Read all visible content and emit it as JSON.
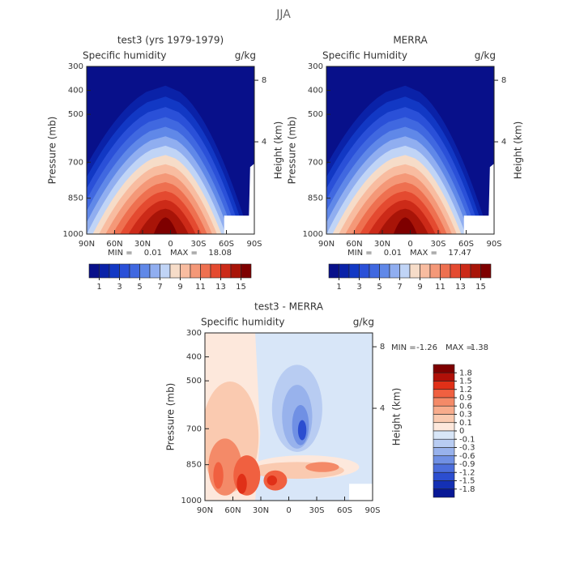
{
  "figure_title": "JJA",
  "chart_data": [
    {
      "type": "contour",
      "title": "test3 (yrs 1979-1979)",
      "subtitle": "Specific humidity",
      "units": "g/kg",
      "ylabel": "Pressure (mb)",
      "y2label": "Height (km)",
      "xlim": [
        90,
        -90
      ],
      "xticks": [
        {
          "value": 90,
          "label": "90N"
        },
        {
          "value": 60,
          "label": "60N"
        },
        {
          "value": 30,
          "label": "30N"
        },
        0,
        {
          "value": -30,
          "label": "30S"
        },
        {
          "value": -60,
          "label": "60S"
        },
        {
          "value": -90,
          "label": "90S"
        }
      ],
      "ylim": [
        1000,
        300
      ],
      "yticks": [
        300,
        400,
        500,
        700,
        850,
        1000
      ],
      "y2lim": [
        -2,
        8.9
      ],
      "y2ticks": [
        8,
        4
      ],
      "min_label": "MIN =",
      "min": 0.01,
      "max_label": "MAX =",
      "max": 18.08,
      "colorbar_lim": [
        0,
        16
      ],
      "colorbar_ticks": [
        1,
        3,
        5,
        7,
        9,
        11,
        13,
        15
      ],
      "colors": [
        "#08108a",
        "#0a22a8",
        "#1238c4",
        "#2a50d8",
        "#4068e0",
        "#6088e8",
        "#90aef0",
        "#c0d4f6",
        "#f6dcc8",
        "#f8bca0",
        "#f49878",
        "#ee7050",
        "#e44a30",
        "#cc2a18",
        "#a81408",
        "#7e0000"
      ]
    },
    {
      "type": "contour",
      "title": "MERRA",
      "subtitle": "Specific Humidity",
      "units": "g/kg",
      "ylabel": "Pressure (mb)",
      "y2label": "Height (km)",
      "xlim": [
        90,
        -90
      ],
      "xticks": [
        {
          "value": 90,
          "label": "90N"
        },
        {
          "value": 60,
          "label": "60N"
        },
        {
          "value": 30,
          "label": "30N"
        },
        0,
        {
          "value": -30,
          "label": "30S"
        },
        {
          "value": -60,
          "label": "60S"
        },
        {
          "value": -90,
          "label": "90S"
        }
      ],
      "ylim": [
        1000,
        300
      ],
      "yticks": [
        300,
        400,
        500,
        700,
        850,
        1000
      ],
      "y2lim": [
        -2,
        8.9
      ],
      "y2ticks": [
        8,
        4
      ],
      "min_label": "MIN =",
      "min": 0.01,
      "max_label": "MAX =",
      "max": 17.47,
      "colorbar_lim": [
        0,
        16
      ],
      "colorbar_ticks": [
        1,
        3,
        5,
        7,
        9,
        11,
        13,
        15
      ],
      "colors": [
        "#08108a",
        "#0a22a8",
        "#1238c4",
        "#2a50d8",
        "#4068e0",
        "#6088e8",
        "#90aef0",
        "#c0d4f6",
        "#f6dcc8",
        "#f8bca0",
        "#f49878",
        "#ee7050",
        "#e44a30",
        "#cc2a18",
        "#a81408",
        "#7e0000"
      ]
    },
    {
      "type": "contour-diff",
      "title": "test3 - MERRA",
      "subtitle": "Specific humidity",
      "units": "g/kg",
      "ylabel": "Pressure (mb)",
      "y2label": "Height (km)",
      "xlim": [
        90,
        -90
      ],
      "xticks": [
        {
          "value": 90,
          "label": "90N"
        },
        {
          "value": 60,
          "label": "60N"
        },
        {
          "value": 30,
          "label": "30N"
        },
        0,
        {
          "value": -30,
          "label": "30S"
        },
        {
          "value": -60,
          "label": "60S"
        },
        {
          "value": -90,
          "label": "90S"
        }
      ],
      "ylim": [
        1000,
        300
      ],
      "yticks": [
        300,
        400,
        500,
        700,
        850,
        1000
      ],
      "y2lim": [
        -2,
        8.9
      ],
      "y2ticks": [
        8,
        4
      ],
      "min_label": "MIN =",
      "min": -1.26,
      "max_label": "MAX =",
      "max": 1.38,
      "colorbar_ticks": [
        1.8,
        1.5,
        1.2,
        0.9,
        0.6,
        0.3,
        0.1,
        0,
        -0.1,
        -0.3,
        -0.6,
        -0.9,
        -1.2,
        -1.5,
        -1.8
      ],
      "colors": [
        "#7e0000",
        "#b01008",
        "#e03018",
        "#f06040",
        "#f48a68",
        "#f8ac8c",
        "#facab0",
        "#fde8dc",
        "#d8e6f8",
        "#b8ccf2",
        "#98b2ec",
        "#7090e4",
        "#4c6edc",
        "#2c4ed0",
        "#1430b4",
        "#081896"
      ]
    }
  ]
}
